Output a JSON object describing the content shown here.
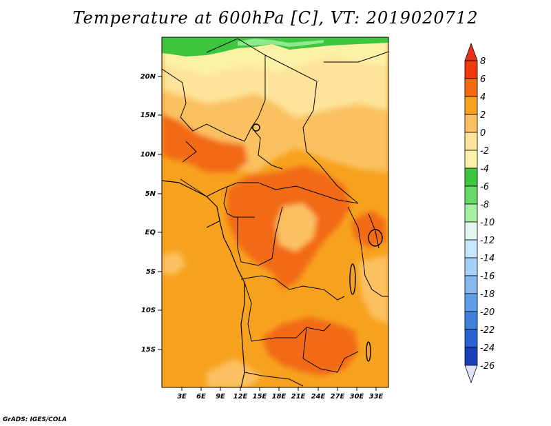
{
  "title": "Temperature at 600hPa [C], VT: 2019020712",
  "credit": "GrADS: IGES/COLA",
  "map": {
    "lat_labels": [
      "20N",
      "15N",
      "10N",
      "5N",
      "EQ",
      "5S",
      "10S",
      "15S"
    ],
    "lon_labels": [
      "3E",
      "6E",
      "9E",
      "12E",
      "15E",
      "18E",
      "21E",
      "24E",
      "27E",
      "30E",
      "33E"
    ],
    "colors": {
      "green": "#3ec63e",
      "light_green": "#8ee88e",
      "pale_yellow": "#fbf2a8",
      "light_yellow": "#fde49a",
      "light_orange": "#fbc160",
      "orange": "#f7a21e",
      "dark_orange": "#f26a12",
      "border": "#000000"
    }
  },
  "colorbar": {
    "labels": [
      "8",
      "6",
      "4",
      "2",
      "0",
      "-2",
      "-4",
      "-6",
      "-8",
      "-10",
      "-12",
      "-14",
      "-16",
      "-18",
      "-20",
      "-22",
      "-24",
      "-26"
    ],
    "colors": [
      "#f03a0a",
      "#f26a12",
      "#f7a21e",
      "#fbc160",
      "#fde49a",
      "#fbf2a8",
      "#3ec63e",
      "#6ad96a",
      "#a6f0a6",
      "#e2f8ee",
      "#c6e8fb",
      "#a6d1f6",
      "#84b8ef",
      "#5f9ee8",
      "#4080dd",
      "#2a62cf",
      "#1840b8",
      "#0a1f8a"
    ],
    "top_arrow_color": "#e8321c",
    "bottom_arrow_color": "#e0e2f5"
  }
}
